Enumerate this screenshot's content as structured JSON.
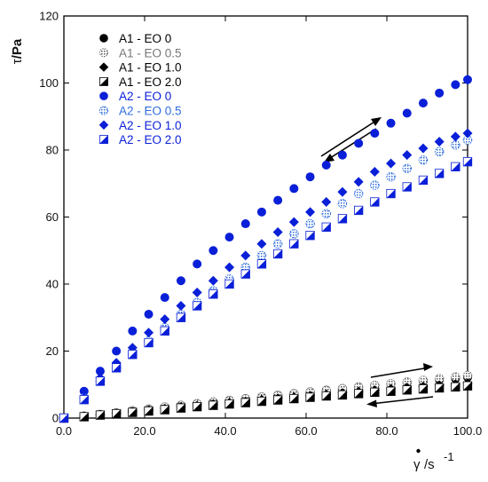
{
  "chart_data": {
    "type": "scatter",
    "xlabel_main": "γ",
    "xlabel_unit": "/s",
    "xlabel_exp": "-1",
    "ylabel_symbol": "τ",
    "ylabel_unit": "/Pa",
    "xlim": [
      0,
      100
    ],
    "ylim": [
      0,
      120
    ],
    "xticks": [
      0,
      20,
      40,
      60,
      80,
      100
    ],
    "xtick_labels": [
      "0.0",
      "20.0",
      "40.0",
      "60.0",
      "80.0",
      "100.0"
    ],
    "yticks": [
      0,
      20,
      40,
      60,
      80,
      100,
      120
    ],
    "ytick_labels": [
      "0",
      "20",
      "40",
      "60",
      "80",
      "100",
      "120"
    ],
    "grid": false,
    "legend_position": "top-left",
    "x": [
      0,
      5,
      9,
      13,
      17,
      21,
      25,
      29,
      33,
      37,
      41,
      45,
      49,
      53,
      57,
      61,
      65,
      69,
      73,
      77,
      81,
      85,
      89,
      93,
      97,
      100
    ],
    "series": [
      {
        "name": "A1 - EO 0",
        "marker": "circle",
        "color": "#000000",
        "fill": "solid",
        "values": [
          0,
          0.6,
          1.1,
          1.6,
          2.2,
          2.7,
          3.3,
          3.8,
          4.3,
          4.8,
          5.3,
          5.8,
          6.3,
          6.8,
          7.3,
          7.8,
          8.3,
          8.8,
          9.3,
          9.7,
          10.2,
          10.6,
          11.0,
          11.4,
          11.8,
          12.2
        ]
      },
      {
        "name": "A1 - EO 0.5",
        "marker": "circle",
        "color": "#777777",
        "fill": "dotted",
        "values": [
          0,
          0.6,
          1.1,
          1.6,
          2.2,
          2.7,
          3.3,
          3.8,
          4.3,
          4.8,
          5.3,
          5.8,
          6.3,
          6.8,
          7.3,
          7.8,
          8.3,
          8.8,
          9.3,
          9.8,
          10.3,
          10.8,
          11.3,
          11.8,
          12.3,
          12.7
        ]
      },
      {
        "name": "A1 - EO 1.0",
        "marker": "diamond",
        "color": "#000000",
        "fill": "solid",
        "values": [
          0,
          0.5,
          1.0,
          1.4,
          1.9,
          2.4,
          2.8,
          3.3,
          3.7,
          4.2,
          4.6,
          5.0,
          5.5,
          5.9,
          6.3,
          6.7,
          7.1,
          7.5,
          7.9,
          8.3,
          8.7,
          9.1,
          9.4,
          9.8,
          10.1,
          10.4
        ]
      },
      {
        "name": "A1 - EO 2.0",
        "marker": "half-square",
        "color": "#000000",
        "fill": "half",
        "values": [
          0,
          0.4,
          0.9,
          1.3,
          1.7,
          2.1,
          2.5,
          3.0,
          3.4,
          3.8,
          4.2,
          4.6,
          5.0,
          5.4,
          5.8,
          6.2,
          6.6,
          6.9,
          7.3,
          7.7,
          8.0,
          8.4,
          8.7,
          9.0,
          9.3,
          9.6
        ]
      },
      {
        "name": "A2 - EO 0",
        "marker": "circle",
        "color": "#0a1fd8",
        "fill": "solid",
        "values": [
          0,
          8,
          14,
          20,
          26,
          31,
          36,
          41,
          46,
          50,
          54,
          58,
          61.5,
          65,
          68.5,
          72,
          75.5,
          78.5,
          82,
          85,
          88,
          91,
          94,
          97,
          99.5,
          101
        ]
      },
      {
        "name": "A2 - EO 0.5",
        "marker": "circle",
        "color": "#2f6de0",
        "fill": "dotted",
        "values": [
          0,
          6,
          11,
          15,
          19,
          23,
          27,
          31,
          34.5,
          38,
          41.5,
          45,
          48.5,
          52,
          55,
          58,
          61,
          64,
          67,
          69.5,
          72,
          74.5,
          77,
          79.5,
          81.5,
          83
        ]
      },
      {
        "name": "A2 - EO 1.0",
        "marker": "diamond",
        "color": "#0a1fd8",
        "fill": "solid",
        "values": [
          0,
          6,
          12,
          16.5,
          21,
          25.5,
          29.5,
          33.5,
          37.5,
          41,
          45,
          48.5,
          52,
          55.5,
          58.5,
          61.5,
          64.5,
          67.5,
          70.5,
          73.5,
          76,
          78.5,
          80.5,
          82.5,
          84,
          85
        ]
      },
      {
        "name": "A2 - EO 2.0",
        "marker": "half-square",
        "color": "#0a1fd8",
        "fill": "half",
        "values": [
          0,
          5.5,
          11,
          15,
          19,
          22.5,
          26,
          30,
          33.5,
          37,
          40,
          43,
          46,
          49,
          52,
          54.5,
          57,
          59.5,
          62,
          64.5,
          67,
          69,
          71,
          73,
          75,
          76.5
        ]
      }
    ]
  }
}
